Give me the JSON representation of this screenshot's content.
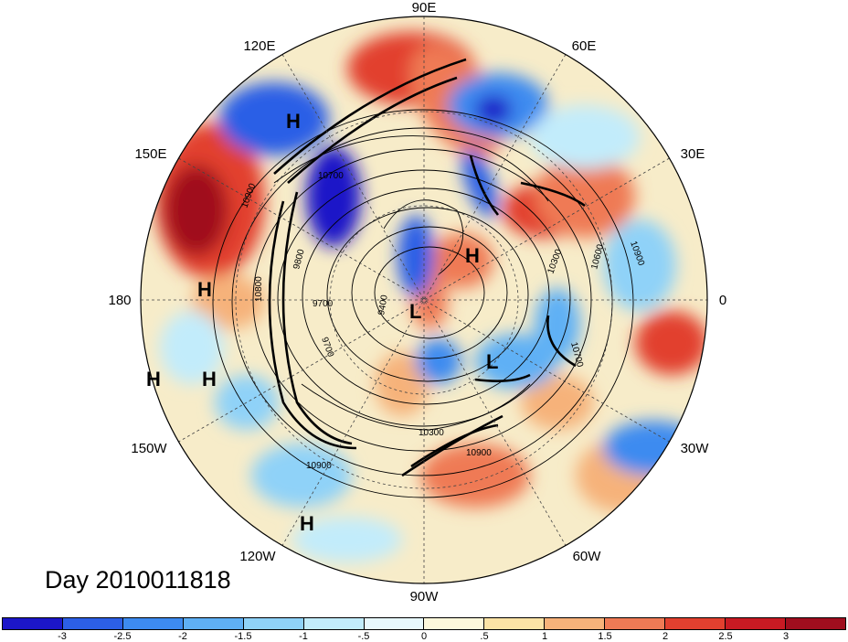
{
  "title": "Day 2010011818",
  "longitude_labels": {
    "top": "90E",
    "upper_left": "120E",
    "upper_right": "60E",
    "left_upper": "150E",
    "right_upper": "30E",
    "left": "180",
    "right": "0",
    "left_lower": "150W",
    "right_lower": "30W",
    "lower_left": "120W",
    "lower_right": "60W",
    "bottom": "90W"
  },
  "pressure_centers": [
    {
      "type": "H"
    },
    {
      "type": "H"
    },
    {
      "type": "L"
    },
    {
      "type": "H"
    },
    {
      "type": "H"
    },
    {
      "type": "H"
    },
    {
      "type": "L"
    },
    {
      "type": "H"
    }
  ],
  "contour_labels": [
    "10900",
    "10700",
    "9800",
    "9700",
    "9700",
    "9400",
    "10300",
    "10600",
    "10900",
    "10700",
    "10300",
    "10900",
    "10900",
    "10800"
  ],
  "colorbar": {
    "labels": [
      "-3",
      "-2.5",
      "-2",
      "-1.5",
      "-1",
      "-.5",
      "0",
      ".5",
      "1",
      "1.5",
      "2",
      "2.5",
      "3"
    ],
    "colors": [
      "#1c16c8",
      "#2c5fe6",
      "#3d8bf0",
      "#5fb0f5",
      "#8fd2f8",
      "#c2ecfb",
      "#e8f8fd",
      "#fdf8dc",
      "#fbe3a6",
      "#f6b27a",
      "#ef7a55",
      "#e2402f",
      "#c81a23",
      "#a00e1e"
    ]
  }
}
